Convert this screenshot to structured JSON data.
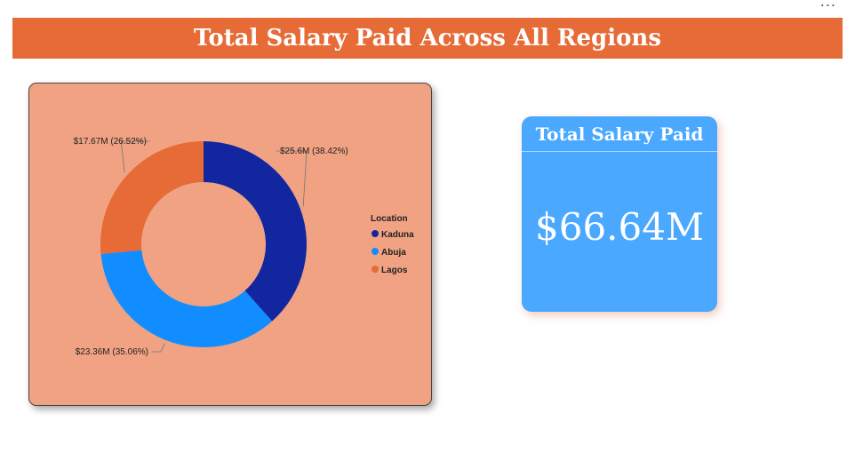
{
  "header": {
    "title": "Total Salary Paid Across All Regions",
    "more_icon": "ellipsis-icon",
    "more_label": "..."
  },
  "colors": {
    "title_bar": "#E66B37",
    "chart_bg": "#F0A283",
    "kpi_bg": "#4AA8FF"
  },
  "chart_data": {
    "type": "pie",
    "donut": true,
    "legend_title": "Location",
    "legend_position": "right",
    "slices": [
      {
        "name": "Kaduna",
        "value": 25.6,
        "label": "$25.6M (38.42%)",
        "color": "#1226A0"
      },
      {
        "name": "Abuja",
        "value": 23.36,
        "label": "$23.36M (35.06%)",
        "color": "#118DFF"
      },
      {
        "name": "Lagos",
        "value": 17.67,
        "label": "$17.67M (26.52%)",
        "color": "#E66B37"
      }
    ]
  },
  "kpi": {
    "label": "Total Salary Paid",
    "value": "$66.64M"
  }
}
